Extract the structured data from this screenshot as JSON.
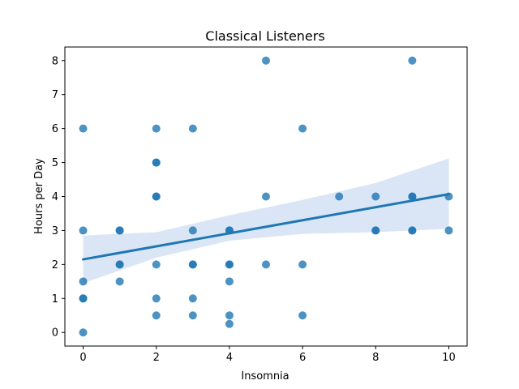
{
  "chart_data": {
    "type": "scatter",
    "title": "Classical Listeners",
    "xlabel": "Insomnia",
    "ylabel": "Hours per Day",
    "xlim": [
      -0.5,
      10.5
    ],
    "ylim": [
      -0.4,
      8.4
    ],
    "xticks": [
      0,
      2,
      4,
      6,
      8,
      10
    ],
    "yticks": [
      0,
      1,
      2,
      3,
      4,
      5,
      6,
      7,
      8
    ],
    "grid": false,
    "colors": {
      "points": "#1f77b4",
      "line": "#1f77b4",
      "band": "#aec7e8"
    },
    "points": [
      [
        0,
        6
      ],
      [
        0,
        3
      ],
      [
        0,
        1.5
      ],
      [
        0,
        1
      ],
      [
        0,
        1
      ],
      [
        0,
        0
      ],
      [
        1,
        3
      ],
      [
        1,
        3
      ],
      [
        1,
        2
      ],
      [
        1,
        2
      ],
      [
        1,
        1.5
      ],
      [
        2,
        6
      ],
      [
        2,
        5
      ],
      [
        2,
        5
      ],
      [
        2,
        4
      ],
      [
        2,
        4
      ],
      [
        2,
        2
      ],
      [
        2,
        1
      ],
      [
        2,
        0.5
      ],
      [
        3,
        6
      ],
      [
        3,
        3
      ],
      [
        3,
        2
      ],
      [
        3,
        2
      ],
      [
        3,
        1
      ],
      [
        3,
        0.5
      ],
      [
        4,
        3
      ],
      [
        4,
        3
      ],
      [
        4,
        2
      ],
      [
        4,
        2
      ],
      [
        4,
        1.5
      ],
      [
        4,
        0.5
      ],
      [
        4,
        0.25
      ],
      [
        5,
        8
      ],
      [
        5,
        4
      ],
      [
        5,
        2
      ],
      [
        6,
        6
      ],
      [
        6,
        2
      ],
      [
        6,
        0.5
      ],
      [
        7,
        4
      ],
      [
        8,
        4
      ],
      [
        8,
        3
      ],
      [
        8,
        3
      ],
      [
        9,
        8
      ],
      [
        9,
        4
      ],
      [
        9,
        4
      ],
      [
        9,
        3
      ],
      [
        9,
        3
      ],
      [
        10,
        4
      ],
      [
        10,
        3
      ]
    ],
    "regression": {
      "line": [
        [
          0,
          2.15
        ],
        [
          10,
          4.07
        ]
      ],
      "ci_upper": [
        [
          0,
          2.85
        ],
        [
          2,
          2.95
        ],
        [
          4,
          3.45
        ],
        [
          6,
          3.9
        ],
        [
          8,
          4.4
        ],
        [
          10,
          5.12
        ]
      ],
      "ci_lower": [
        [
          0,
          1.45
        ],
        [
          2,
          2.2
        ],
        [
          4,
          2.7
        ],
        [
          6,
          2.9
        ],
        [
          8,
          2.95
        ],
        [
          10,
          3.05
        ]
      ]
    }
  }
}
